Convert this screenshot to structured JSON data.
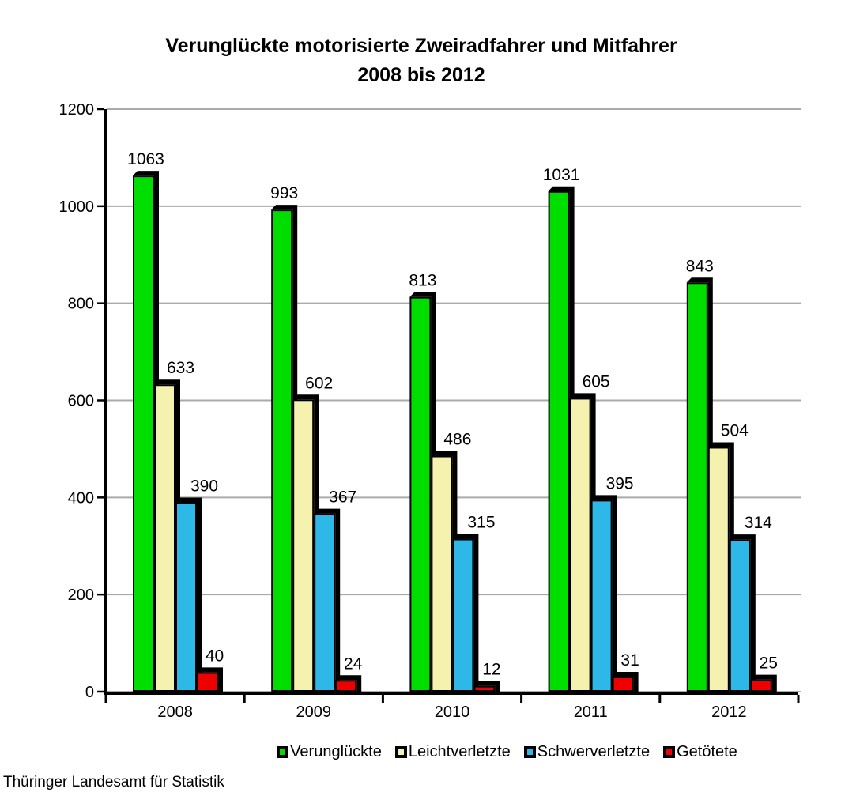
{
  "title": {
    "line1": "Verunglückte motorisierte Zweiradfahrer und Mitfahrer",
    "line2": "2008 bis 2012"
  },
  "source": "Thüringer Landesamt für Statistik",
  "chart_data": {
    "type": "bar",
    "title": "Verunglückte motorisierte Zweiradfahrer und Mitfahrer 2008 bis 2012",
    "categories": [
      "2008",
      "2009",
      "2010",
      "2011",
      "2012"
    ],
    "series": [
      {
        "name": "Verunglückte",
        "color": "#00DE00",
        "values": [
          1063,
          993,
          813,
          1031,
          843
        ]
      },
      {
        "name": "Leichtverletzte",
        "color": "#F5F1AE",
        "values": [
          633,
          602,
          486,
          605,
          504
        ]
      },
      {
        "name": "Schwerverletzte",
        "color": "#2EB8E8",
        "values": [
          390,
          367,
          315,
          395,
          314
        ]
      },
      {
        "name": "Getötete",
        "color": "#EE0000",
        "values": [
          40,
          24,
          12,
          31,
          25
        ]
      }
    ],
    "xlabel": "",
    "ylabel": "",
    "ylim": [
      0,
      1200
    ],
    "ytick_interval": 200,
    "yticks": [
      "0",
      "200",
      "400",
      "600",
      "800",
      "1000",
      "1200"
    ],
    "grid": true,
    "gridline_color": "#AAAAAA",
    "bar_outline_color": "#000000",
    "axis_color": "#000000",
    "legend_position": "bottom",
    "data_labels": true
  }
}
